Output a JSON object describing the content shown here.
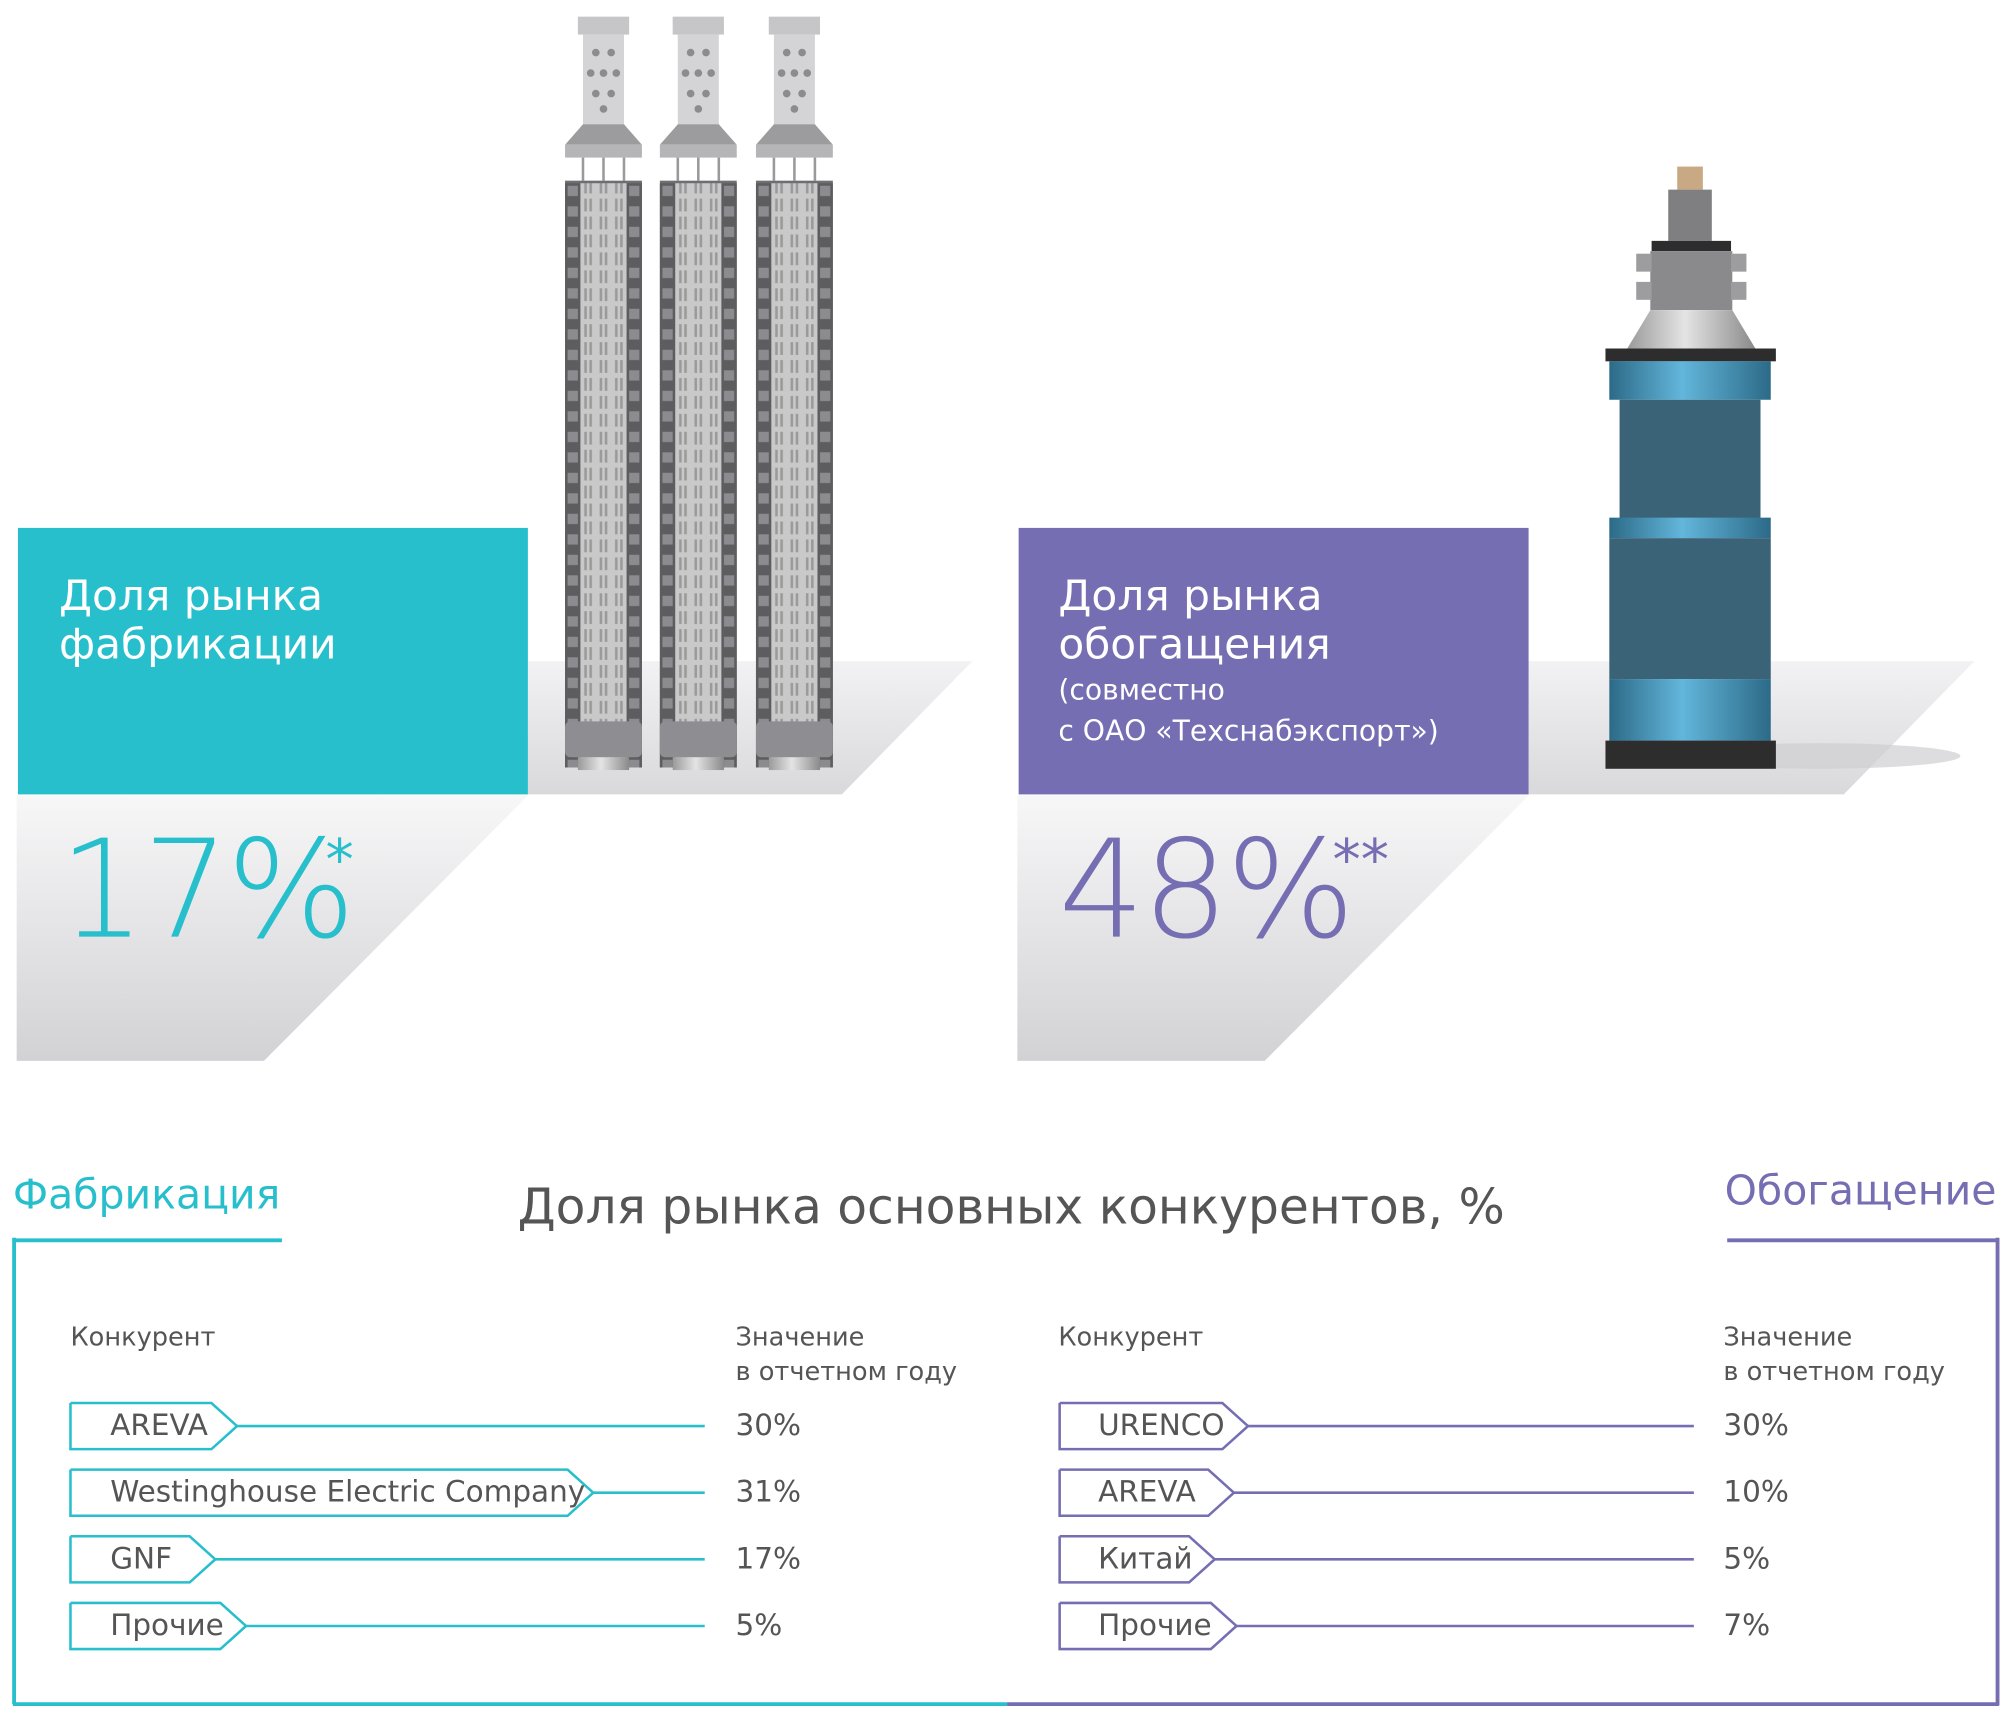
{
  "fab": {
    "title_line1": "Доля рынка",
    "title_line2": "фабрикации",
    "value": "17%",
    "footnote": "*",
    "color": "#28bfcd"
  },
  "enr": {
    "title_line1": "Доля рынка",
    "title_line2": "обогащения",
    "note_line1": "(совместно",
    "note_line2": "с ОАО «Техснабэкспорт»)",
    "value": "48%",
    "footnote": "**",
    "color": "#756eb2"
  },
  "competitors": {
    "title": "Доля рынка основных конкурентов, %",
    "fab_label": "Фабрикация",
    "enr_label": "Обогащение",
    "col_competitor": "Конкурент",
    "col_value_line1": "Значение",
    "col_value_line2": "в отчетном году",
    "fab_rows": [
      {
        "name": "AREVA",
        "value": "30%"
      },
      {
        "name": "Westinghouse Electric Company",
        "value": "31%"
      },
      {
        "name": "GNF",
        "value": "17%"
      },
      {
        "name": "Прочие",
        "value": "5%"
      }
    ],
    "enr_rows": [
      {
        "name": "URENCO",
        "value": "30%"
      },
      {
        "name": "AREVA",
        "value": "10%"
      },
      {
        "name": "Китай",
        "value": "5%"
      },
      {
        "name": "Прочие",
        "value": "7%"
      }
    ]
  },
  "icons": {
    "fuel_assemblies": "fuel-assembly-icon",
    "centrifuge": "centrifuge-icon"
  }
}
